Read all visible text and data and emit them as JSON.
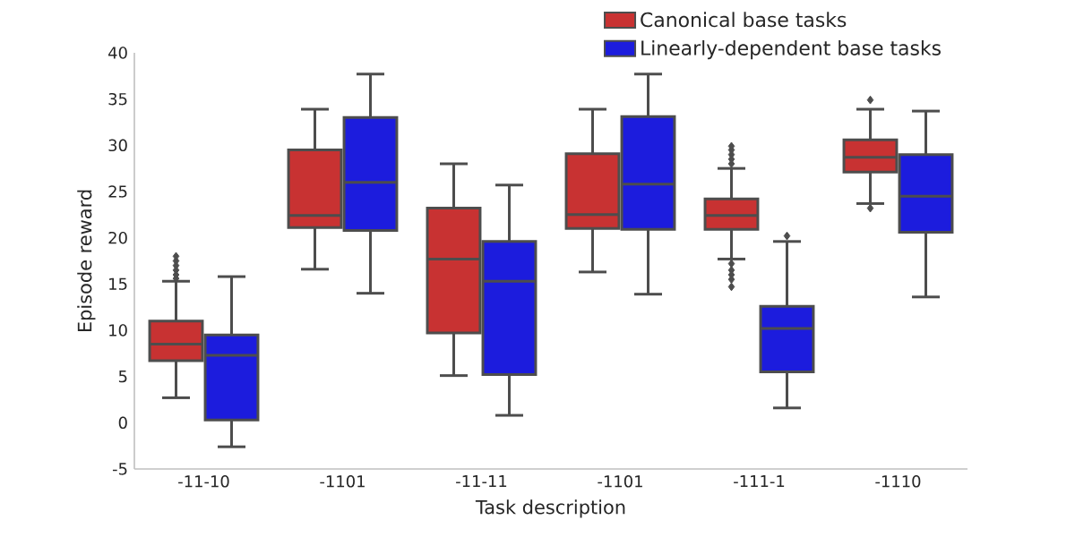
{
  "chart_data": {
    "type": "box",
    "xlabel": "Task description",
    "ylabel": "Episode reward",
    "categories": [
      "-11-10",
      "-1101",
      "-11-11",
      "-1101",
      "-111-1",
      "-1110"
    ],
    "ylim": [
      -5,
      40
    ],
    "yticks": [
      -5,
      0,
      5,
      10,
      15,
      20,
      25,
      30,
      35,
      40
    ],
    "legend": "top right",
    "marker": "diamond",
    "series": [
      {
        "name": "Canonical base tasks",
        "color": "#c83232",
        "boxes": [
          {
            "low": 2.7,
            "q1": 6.7,
            "median": 8.5,
            "q3": 11.0,
            "high": 15.3,
            "outliers": [
              15.6,
              16,
              16.5,
              17,
              17.5,
              18
            ]
          },
          {
            "low": 16.6,
            "q1": 21.1,
            "median": 22.4,
            "q3": 29.5,
            "high": 33.9
          },
          {
            "low": 5.1,
            "q1": 9.7,
            "median": 17.7,
            "q3": 23.2,
            "high": 28.0
          },
          {
            "low": 16.3,
            "q1": 21.0,
            "median": 22.5,
            "q3": 29.1,
            "high": 33.9
          },
          {
            "low": 17.7,
            "q1": 20.9,
            "median": 22.4,
            "q3": 24.2,
            "high": 27.5,
            "outliers": [
              28,
              28.5,
              29,
              29.5,
              29.9,
              17.2,
              16.5,
              16,
              15.5,
              14.7
            ]
          },
          {
            "low": 23.7,
            "q1": 27.1,
            "median": 28.7,
            "q3": 30.6,
            "high": 33.9,
            "outliers": [
              34.9,
              23.2
            ]
          }
        ]
      },
      {
        "name": "Linearly-dependent base tasks",
        "color": "#1c1cdd",
        "boxes": [
          {
            "low": -2.6,
            "q1": 0.3,
            "median": 7.3,
            "q3": 9.5,
            "high": 15.8
          },
          {
            "low": 14.0,
            "q1": 20.8,
            "median": 26.0,
            "q3": 33.0,
            "high": 37.7
          },
          {
            "low": 0.8,
            "q1": 5.2,
            "median": 15.3,
            "q3": 19.6,
            "high": 25.7
          },
          {
            "low": 13.9,
            "q1": 20.9,
            "median": 25.8,
            "q3": 33.1,
            "high": 37.7
          },
          {
            "low": 1.6,
            "q1": 5.5,
            "median": 10.2,
            "q3": 12.6,
            "high": 19.6,
            "outliers": [
              20.2
            ]
          },
          {
            "low": 13.6,
            "q1": 20.6,
            "median": 24.5,
            "q3": 29.0,
            "high": 33.7
          }
        ]
      }
    ]
  }
}
